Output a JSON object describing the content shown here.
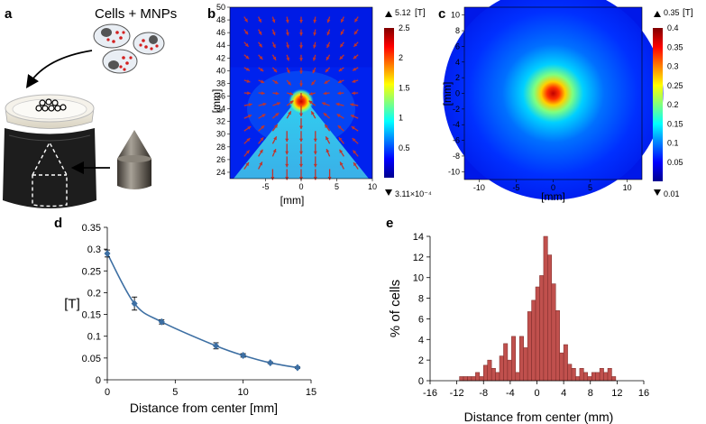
{
  "panel_labels": {
    "a": "a",
    "b": "b",
    "c": "c",
    "d": "d",
    "e": "e"
  },
  "panel_a": {
    "label": "Cells + MNPs"
  },
  "colors": {
    "line": "#3d6fa3",
    "bar": "#c0504d",
    "bar_edge": "#7a2a28",
    "arrow": "#c0342c",
    "axis": "#000000"
  },
  "chart_data": [
    {
      "type": "heatmap",
      "panel": "b",
      "title": "",
      "xlabel": "[mm]",
      "ylabel": "[mm]",
      "xlim": [
        -10,
        10
      ],
      "ylim": [
        23,
        50
      ],
      "xticks": [
        "-5",
        "0",
        "5",
        "10"
      ],
      "yticks": [
        "24",
        "26",
        "28",
        "30",
        "32",
        "34",
        "36",
        "38",
        "40",
        "42",
        "44",
        "46",
        "48",
        "50"
      ],
      "colorbar": {
        "unit": "[T]",
        "max_label": "5.12",
        "min_label": "3.11×10⁻⁴",
        "ticks": [
          "0.5",
          "1",
          "1.5",
          "2",
          "2.5"
        ],
        "range": [
          0,
          2.5
        ]
      },
      "cone_tip": [
        0,
        36
      ]
    },
    {
      "type": "heatmap",
      "panel": "c",
      "title": "",
      "xlabel": "[mm]",
      "ylabel": "[mm]",
      "xlim": [
        -12,
        12
      ],
      "ylim": [
        -11,
        11
      ],
      "xticks": [
        "-10",
        "-5",
        "0",
        "5",
        "10"
      ],
      "yticks": [
        "-10",
        "-8",
        "-6",
        "-4",
        "-2",
        "0",
        "2",
        "4",
        "6",
        "8",
        "10"
      ],
      "colorbar": {
        "unit": "[T]",
        "max_label": "0.35",
        "min_label": "0.01",
        "ticks": [
          "0.05",
          "0.1",
          "0.15",
          "0.2",
          "0.25",
          "0.3",
          "0.35",
          "0.4"
        ],
        "range": [
          0,
          0.4
        ]
      }
    },
    {
      "type": "line",
      "panel": "d",
      "xlabel": "Distance from center [mm]",
      "ylabel": "[T]",
      "xlim": [
        0,
        15
      ],
      "ylim": [
        0,
        0.35
      ],
      "xticks": [
        "0",
        "5",
        "10",
        "15"
      ],
      "yticks": [
        "0",
        "0.05",
        "0.1",
        "0.15",
        "0.2",
        "0.25",
        "0.3",
        "0.35"
      ],
      "x": [
        0,
        2,
        4,
        8,
        10,
        12,
        14
      ],
      "y": [
        0.29,
        0.175,
        0.133,
        0.078,
        0.056,
        0.039,
        0.028
      ],
      "err": [
        0.008,
        0.015,
        0.005,
        0.007,
        0.004,
        0.002,
        0.002
      ]
    },
    {
      "type": "bar",
      "panel": "e",
      "xlabel": "Distance from center (mm)",
      "ylabel": "% of cells",
      "xlim": [
        -16,
        16
      ],
      "ylim": [
        0,
        14
      ],
      "xticks": [
        "-16",
        "-12",
        "-8",
        "-4",
        "0",
        "4",
        "8",
        "12",
        "16"
      ],
      "yticks": [
        "0",
        "2",
        "4",
        "6",
        "8",
        "10",
        "12",
        "14"
      ],
      "bin_width": 0.6,
      "bin_start": -11.6,
      "values": [
        0.4,
        0.4,
        0.4,
        0.4,
        0.8,
        0.4,
        1.5,
        2.0,
        1.2,
        0.8,
        2.4,
        3.6,
        2.0,
        4.3,
        0.8,
        4.3,
        3.2,
        6.7,
        7.8,
        9.1,
        10.2,
        14.0,
        12.2,
        9.4,
        6.8,
        2.7,
        3.5,
        1.6,
        1.2,
        0.4,
        1.2,
        0.8,
        0.4,
        0.8,
        0.8,
        1.2,
        0.8,
        1.2,
        0.4
      ]
    }
  ]
}
